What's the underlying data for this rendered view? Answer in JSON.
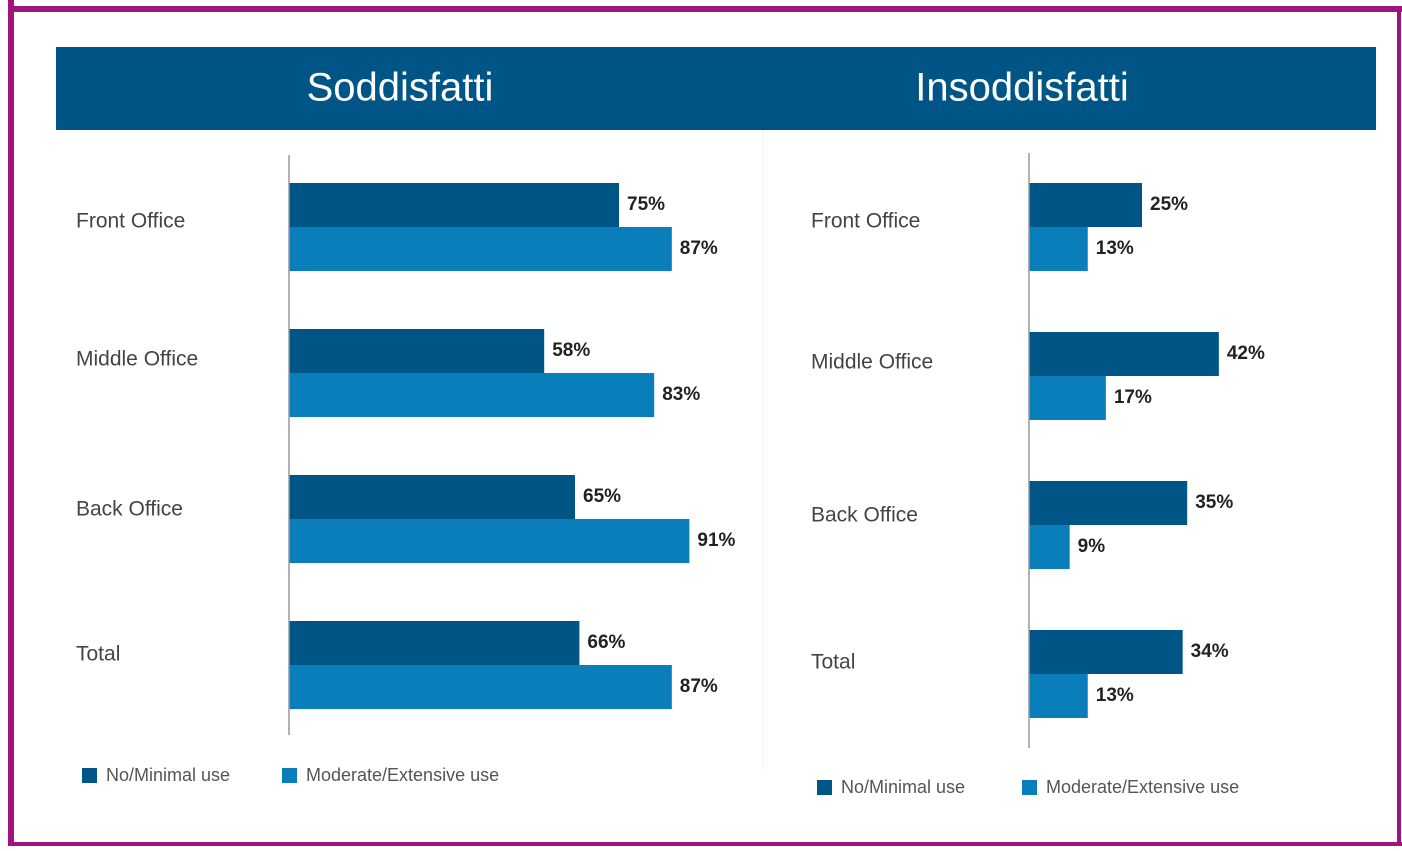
{
  "chart_data": [
    {
      "type": "bar",
      "orientation": "horizontal",
      "title": "Soddisfatti",
      "categories": [
        "Front Office",
        "Middle Office",
        "Back Office",
        "Total"
      ],
      "series": [
        {
          "name": "No/Minimal use",
          "color": "#005587",
          "values": [
            75,
            58,
            65,
            66
          ],
          "value_labels": [
            "75%",
            "58%",
            "65%",
            "66%"
          ]
        },
        {
          "name": "Moderate/Extensive use",
          "color": "#0a7dbb",
          "values": [
            87,
            83,
            91,
            87
          ],
          "value_labels": [
            "87%",
            "83%",
            "91%",
            "87%"
          ]
        }
      ],
      "xlim": [
        0,
        100
      ]
    },
    {
      "type": "bar",
      "orientation": "horizontal",
      "title": "Insoddisfatti",
      "categories": [
        "Front Office",
        "Middle Office",
        "Back Office",
        "Total"
      ],
      "series": [
        {
          "name": "No/Minimal use",
          "color": "#005587",
          "values": [
            25,
            42,
            35,
            34
          ],
          "value_labels": [
            "25%",
            "42%",
            "35%",
            "34%"
          ]
        },
        {
          "name": "Moderate/Extensive use",
          "color": "#0a7dbb",
          "values": [
            13,
            17,
            9,
            13
          ],
          "value_labels": [
            "13%",
            "17%",
            "9%",
            "13%"
          ]
        }
      ],
      "xlim": [
        0,
        100
      ]
    }
  ]
}
